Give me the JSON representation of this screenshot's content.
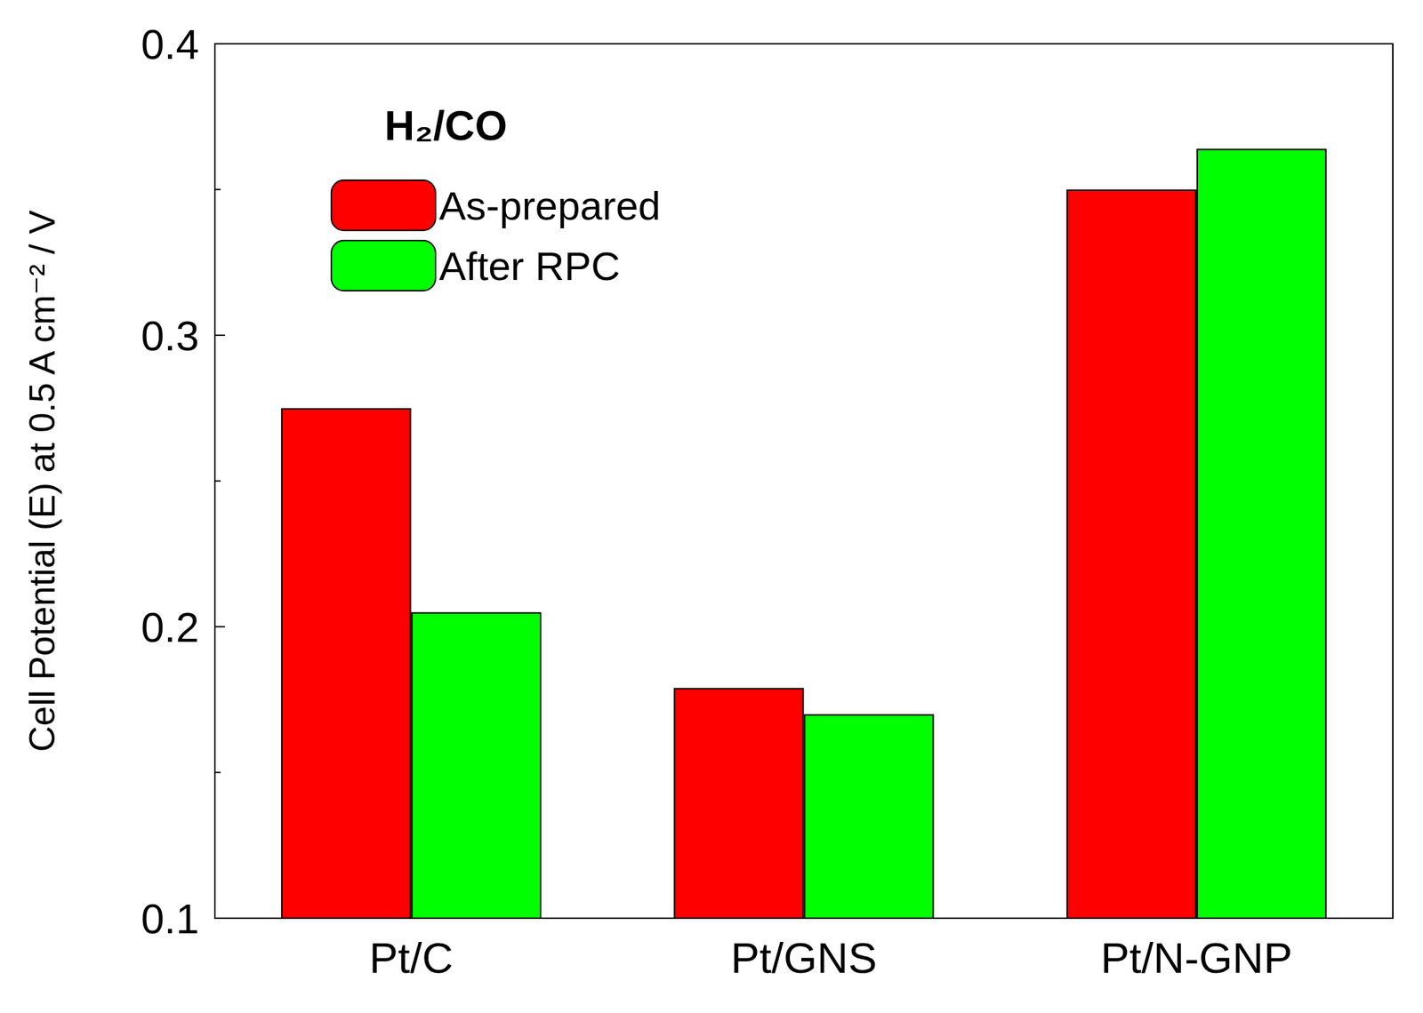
{
  "chart_data": {
    "type": "bar",
    "title": "H₂/CO",
    "ylabel": "Cell Potential (E) at 0.5 A cm⁻² / V",
    "categories": [
      "Pt/C",
      "Pt/GNS",
      "Pt/N-GNP"
    ],
    "series": [
      {
        "name": "As-prepared",
        "color": "#ff0000",
        "values": [
          0.275,
          0.179,
          0.35
        ]
      },
      {
        "name": "After RPC",
        "color": "#00ff00",
        "values": [
          0.205,
          0.17,
          0.364
        ]
      }
    ],
    "ylim": [
      0.1,
      0.4
    ],
    "yticks": [
      0.1,
      0.2,
      0.3,
      0.4
    ],
    "grid": false,
    "legend": "upper left"
  }
}
